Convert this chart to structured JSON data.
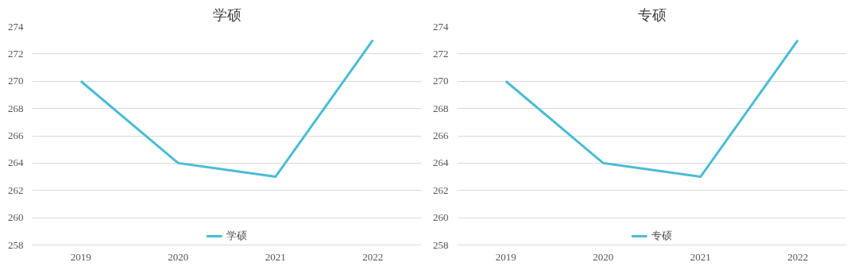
{
  "chart_data": [
    {
      "type": "line",
      "title": "学硕",
      "categories": [
        "2019",
        "2020",
        "2021",
        "2022"
      ],
      "series": [
        {
          "name": "学硕",
          "color": "#4bbcd4",
          "values": [
            270,
            264,
            263,
            273
          ]
        }
      ],
      "ylim": [
        258,
        274
      ],
      "yticks": [
        258,
        260,
        262,
        264,
        266,
        268,
        270,
        272,
        274
      ],
      "grid": "y",
      "legend": "bottom",
      "marker": "none",
      "line_style": "solid"
    },
    {
      "type": "line",
      "title": "专硕",
      "categories": [
        "2019",
        "2020",
        "2021",
        "2022"
      ],
      "series": [
        {
          "name": "专硕",
          "color": "#4bbcd4",
          "values": [
            270,
            264,
            263,
            273
          ]
        }
      ],
      "ylim": [
        258,
        274
      ],
      "yticks": [
        258,
        260,
        262,
        264,
        266,
        268,
        270,
        272,
        274
      ],
      "grid": "y",
      "legend": "bottom",
      "marker": "none",
      "line_style": "solid"
    }
  ]
}
